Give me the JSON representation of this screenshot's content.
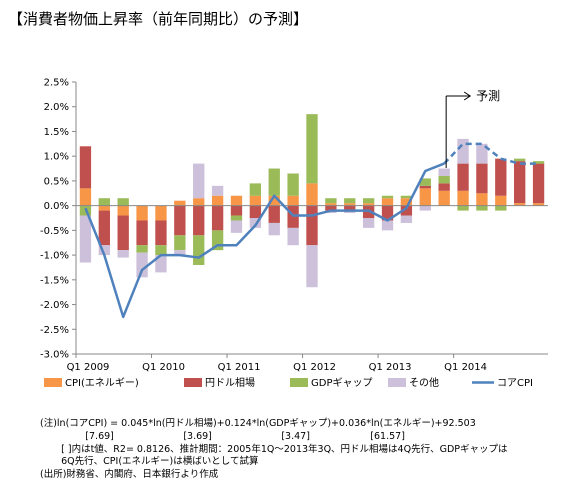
{
  "title": "【消費者物価上昇率（前年同期比）の予測】",
  "chart_data": {
    "type": "bar",
    "stacked": true,
    "ylim": [
      -3.0,
      2.5
    ],
    "yticks": [
      "2.5%",
      "2.0%",
      "1.5%",
      "1.0%",
      "0.5%",
      "0.0%",
      "-0.5%",
      "-1.0%",
      "-1.5%",
      "-2.0%",
      "-2.5%",
      "-3.0%"
    ],
    "grid": false,
    "categories": [
      "Q1 2009",
      "Q2 2009",
      "Q3 2009",
      "Q4 2009",
      "Q1 2010",
      "Q2 2010",
      "Q3 2010",
      "Q4 2010",
      "Q1 2011",
      "Q2 2011",
      "Q3 2011",
      "Q4 2011",
      "Q1 2012",
      "Q2 2012",
      "Q3 2012",
      "Q4 2012",
      "Q1 2013",
      "Q2 2013",
      "Q3 2013",
      "Q4 2013",
      "Q1 2014",
      "Q2 2014",
      "Q3 2014",
      "Q4 2014",
      "Q1 2015"
    ],
    "x_tick_labels": [
      {
        "index": 0,
        "label": "Q1 2009"
      },
      {
        "index": 4,
        "label": "Q1 2010"
      },
      {
        "index": 8,
        "label": "Q1 2011"
      },
      {
        "index": 12,
        "label": "Q1 2012"
      },
      {
        "index": 16,
        "label": "Q1 2013"
      },
      {
        "index": 20,
        "label": "Q1 2014"
      }
    ],
    "forecast_start_index": 19,
    "forecast_label": "予測",
    "series": [
      {
        "name": "CPI(エネルギー)",
        "color": "#f79646",
        "values": [
          0.35,
          -0.1,
          -0.2,
          -0.3,
          -0.3,
          0.1,
          0.15,
          0.2,
          0.2,
          0.2,
          0.2,
          0.2,
          0.45,
          0.05,
          0.05,
          0.05,
          0.15,
          0.15,
          0.35,
          0.3,
          0.3,
          0.25,
          0.2,
          0.05,
          0.05
        ]
      },
      {
        "name": "円ドル相場",
        "color": "#c0504d",
        "values": [
          0.85,
          -0.7,
          -0.7,
          -0.5,
          -0.5,
          -0.6,
          -0.6,
          -0.5,
          -0.2,
          -0.25,
          -0.35,
          -0.45,
          -0.8,
          -0.1,
          -0.1,
          -0.25,
          -0.3,
          -0.2,
          0.05,
          0.15,
          0.55,
          0.6,
          0.75,
          0.85,
          0.8
        ]
      },
      {
        "name": "GDPギャップ",
        "color": "#9bbb59",
        "values": [
          -0.2,
          0.15,
          0.15,
          -0.15,
          -0.2,
          -0.3,
          -0.6,
          -0.4,
          -0.1,
          0.25,
          0.55,
          0.45,
          1.4,
          0.1,
          0.1,
          0.1,
          0.05,
          0.05,
          0.15,
          0.15,
          -0.1,
          -0.1,
          -0.1,
          0.05,
          0.05
        ]
      },
      {
        "name": "その他",
        "color": "#ccc0da",
        "values": [
          -0.95,
          -0.2,
          -0.15,
          -0.5,
          -0.35,
          -0.1,
          0.7,
          0.2,
          -0.25,
          -0.2,
          -0.25,
          -0.35,
          -0.85,
          -0.05,
          -0.05,
          -0.2,
          -0.2,
          -0.15,
          -0.1,
          0.15,
          0.5,
          0.4,
          0.0,
          0.0,
          0.0
        ]
      }
    ],
    "line": {
      "name": "コアCPI",
      "color": "#4f81bd",
      "values": [
        -0.05,
        -1.0,
        -2.25,
        -1.3,
        -1.0,
        -1.0,
        -1.05,
        -0.8,
        -0.8,
        -0.4,
        0.2,
        -0.2,
        -0.2,
        -0.1,
        -0.1,
        -0.1,
        -0.3,
        -0.05,
        0.7,
        0.85,
        1.25,
        1.25,
        0.95,
        0.85,
        0.85
      ]
    },
    "legend_position": "bottom"
  },
  "notes": [
    "(注)ln(コアCPI) = 0.045*ln(円ドル相場)+0.124*ln(GDPギャップ)+0.036*ln(エネルギー)+92.503",
    "               [7.69]                       [3.69]                       [3.47]                    [61.57]",
    "       [ ]内はt値、R2= 0.8126、推計期間：2005年1Q～2013年3Q、円ドル相場は4Q先行、GDPギャップは",
    "       6Q先行、CPI(エネルギー)は横ばいとして試算",
    "(出所)財務省、内閣府、日本銀行より作成"
  ]
}
